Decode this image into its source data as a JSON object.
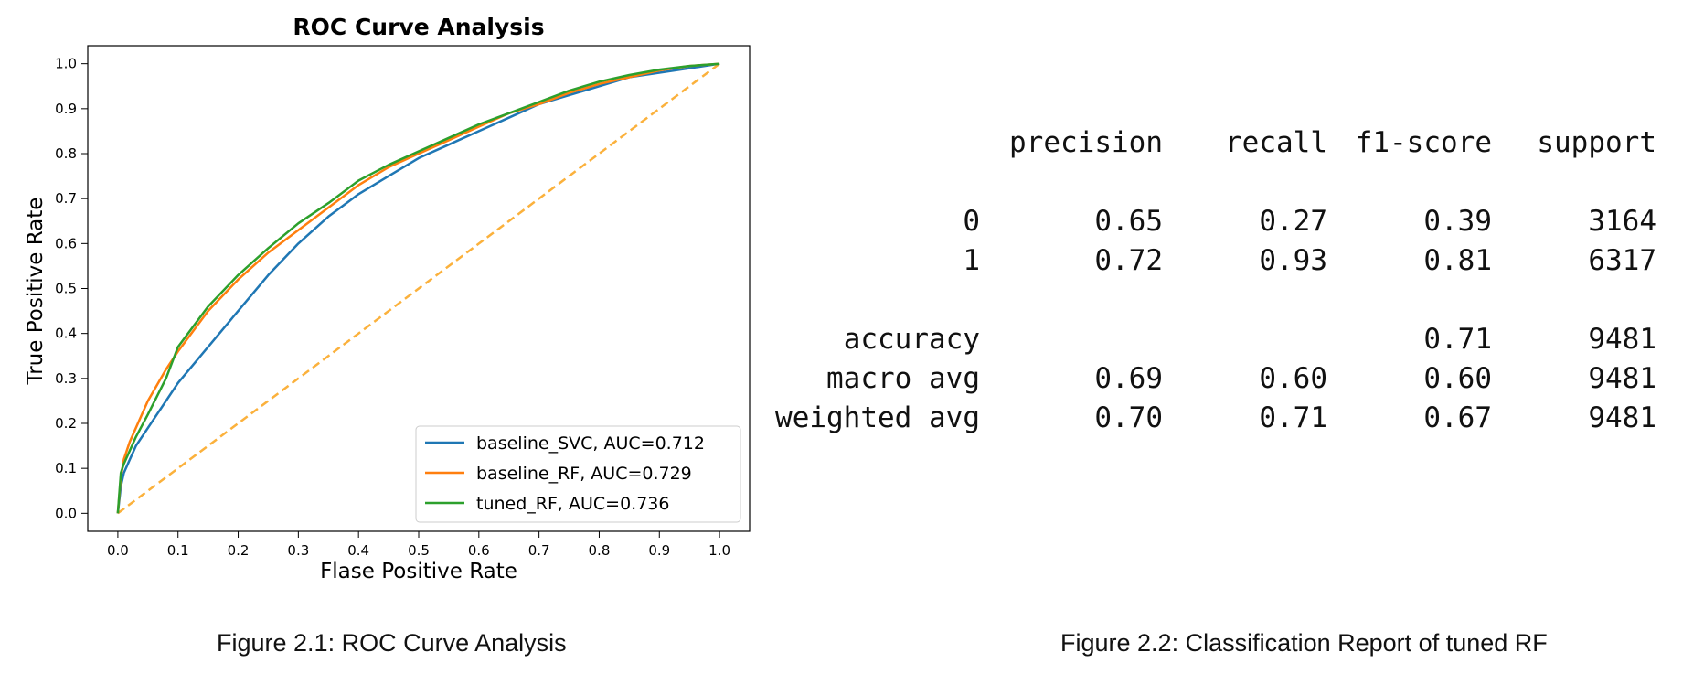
{
  "chart_data": {
    "type": "line",
    "title": "ROC Curve Analysis",
    "xlabel": "Flase Positive Rate",
    "ylabel": "True Positive Rate",
    "xlim": [
      -0.05,
      1.05
    ],
    "ylim": [
      -0.04,
      1.04
    ],
    "xticks": [
      "0.0",
      "0.1",
      "0.2",
      "0.3",
      "0.4",
      "0.5",
      "0.6",
      "0.7",
      "0.8",
      "0.9",
      "1.0"
    ],
    "yticks": [
      "0.0",
      "0.1",
      "0.2",
      "0.3",
      "0.4",
      "0.5",
      "0.6",
      "0.7",
      "0.8",
      "0.9",
      "1.0"
    ],
    "grid": false,
    "legend_position": "lower-right",
    "series": [
      {
        "name": "baseline_SVC, AUC=0.712",
        "color": "#1f77b4",
        "x": [
          0,
          0.005,
          0.01,
          0.02,
          0.03,
          0.05,
          0.08,
          0.1,
          0.15,
          0.2,
          0.25,
          0.3,
          0.35,
          0.4,
          0.45,
          0.5,
          0.55,
          0.6,
          0.65,
          0.7,
          0.75,
          0.8,
          0.85,
          0.9,
          0.95,
          1.0
        ],
        "y": [
          0,
          0.06,
          0.09,
          0.12,
          0.15,
          0.19,
          0.25,
          0.29,
          0.37,
          0.45,
          0.53,
          0.6,
          0.66,
          0.71,
          0.75,
          0.79,
          0.82,
          0.85,
          0.88,
          0.91,
          0.93,
          0.95,
          0.97,
          0.98,
          0.99,
          1.0
        ]
      },
      {
        "name": "baseline_RF, AUC=0.729",
        "color": "#ff7f0e",
        "x": [
          0,
          0.005,
          0.01,
          0.02,
          0.03,
          0.05,
          0.08,
          0.1,
          0.15,
          0.2,
          0.25,
          0.3,
          0.35,
          0.4,
          0.45,
          0.5,
          0.55,
          0.6,
          0.65,
          0.7,
          0.75,
          0.8,
          0.85,
          0.9,
          0.95,
          1.0
        ],
        "y": [
          0,
          0.08,
          0.12,
          0.16,
          0.19,
          0.25,
          0.32,
          0.36,
          0.45,
          0.52,
          0.58,
          0.63,
          0.68,
          0.73,
          0.77,
          0.8,
          0.83,
          0.86,
          0.89,
          0.91,
          0.935,
          0.955,
          0.97,
          0.985,
          0.995,
          1.0
        ]
      },
      {
        "name": "tuned_RF, AUC=0.736",
        "color": "#2ca02c",
        "x": [
          0,
          0.005,
          0.01,
          0.02,
          0.03,
          0.05,
          0.08,
          0.1,
          0.15,
          0.2,
          0.25,
          0.3,
          0.35,
          0.4,
          0.45,
          0.5,
          0.55,
          0.6,
          0.65,
          0.7,
          0.75,
          0.8,
          0.85,
          0.9,
          0.95,
          1.0
        ],
        "y": [
          0,
          0.09,
          0.11,
          0.14,
          0.17,
          0.22,
          0.3,
          0.37,
          0.46,
          0.53,
          0.59,
          0.645,
          0.69,
          0.74,
          0.775,
          0.805,
          0.835,
          0.865,
          0.89,
          0.915,
          0.94,
          0.96,
          0.975,
          0.987,
          0.995,
          1.0
        ]
      },
      {
        "name": "",
        "color": "#fbb13c",
        "dashed": true,
        "x": [
          0,
          1.0
        ],
        "y": [
          0,
          1.0
        ]
      }
    ]
  },
  "report": {
    "header": [
      "precision",
      "recall",
      "f1-score",
      "support"
    ],
    "rows": [
      [
        "0",
        "0.65",
        "0.27",
        "0.39",
        "3164"
      ],
      [
        "1",
        "0.72",
        "0.93",
        "0.81",
        "6317"
      ],
      [
        "",
        "",
        "",
        "",
        ""
      ],
      [
        "accuracy",
        "",
        "",
        "0.71",
        "9481"
      ],
      [
        "macro avg",
        "0.69",
        "0.60",
        "0.60",
        "9481"
      ],
      [
        "weighted avg",
        "0.70",
        "0.71",
        "0.67",
        "9481"
      ]
    ]
  },
  "captions": {
    "fig1": "Figure 2.1: ROC Curve Analysis",
    "fig2": "Figure 2.2: Classification Report of tuned RF"
  }
}
